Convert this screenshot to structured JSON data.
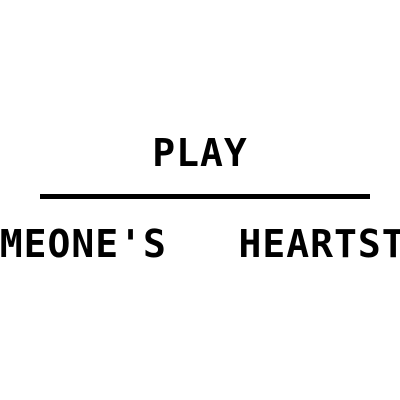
{
  "title_word": "PLAY",
  "bottom_text": "SOMEONE'S   HEARTSTRINGS",
  "colors": {
    "background": "#ffffff",
    "ink": "#000000"
  }
}
